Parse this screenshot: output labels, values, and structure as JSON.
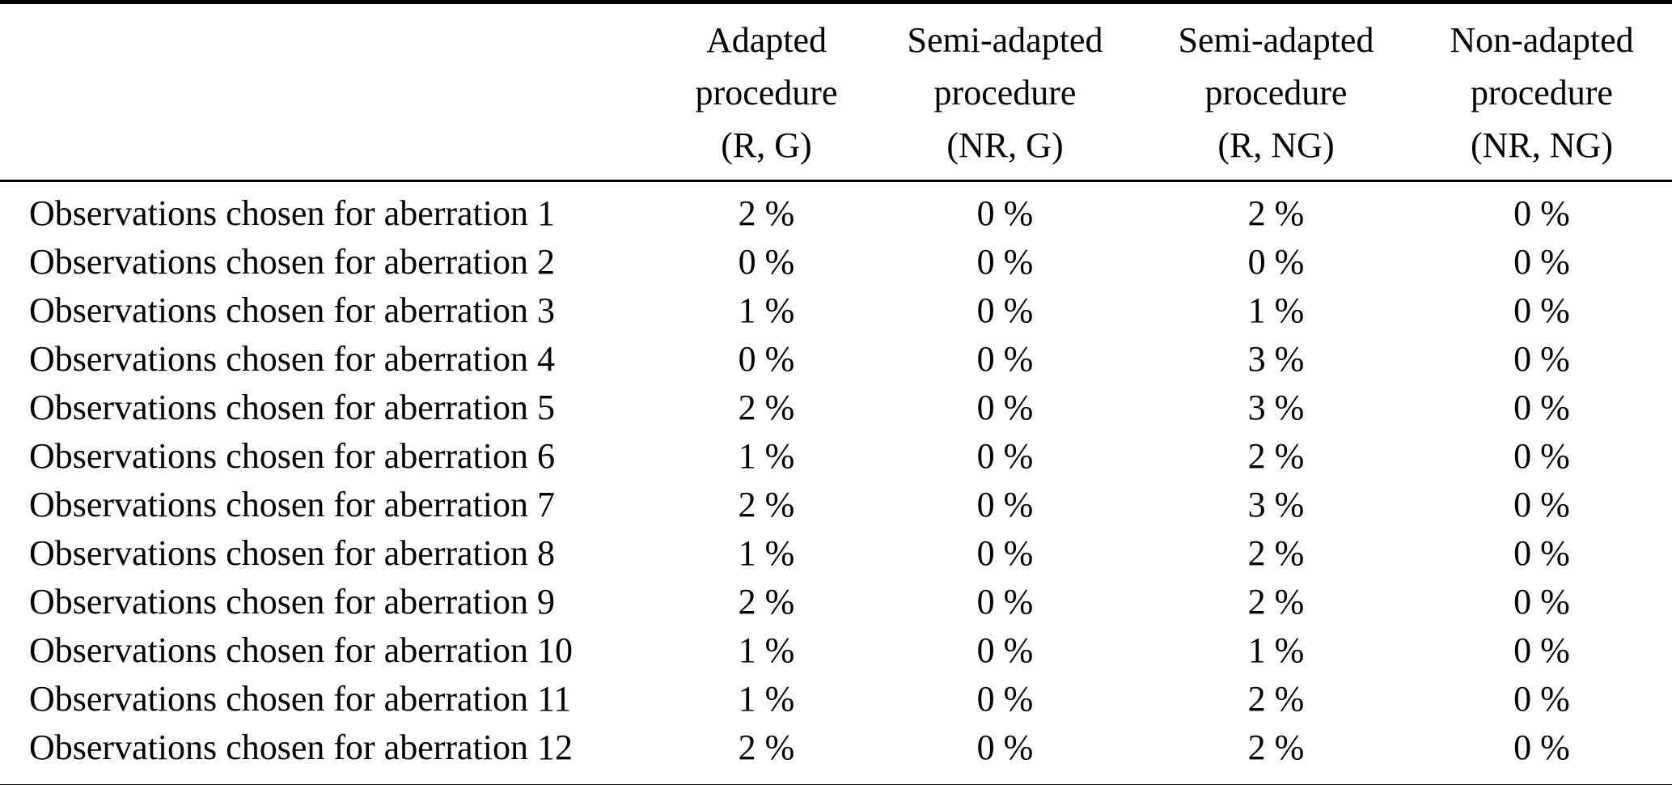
{
  "colors": {
    "background": "#ffffff",
    "text": "#000000",
    "rule": "#000000"
  },
  "table": {
    "corner_label": "",
    "columns": [
      {
        "label": "Adapted\nprocedure\n(R, G)"
      },
      {
        "label": "Semi-adapted\nprocedure\n(NR, G)"
      },
      {
        "label": "Semi-adapted\nprocedure\n(R, NG)"
      },
      {
        "label": "Non-adapted\nprocedure\n(NR, NG)"
      }
    ],
    "rows": [
      {
        "label": "Observations chosen for aberration 1",
        "values": [
          "2 %",
          "0 %",
          "2 %",
          "0 %"
        ]
      },
      {
        "label": "Observations chosen for aberration 2",
        "values": [
          "0 %",
          "0 %",
          "0 %",
          "0 %"
        ]
      },
      {
        "label": "Observations chosen for aberration 3",
        "values": [
          "1 %",
          "0 %",
          "1 %",
          "0 %"
        ]
      },
      {
        "label": "Observations chosen for aberration 4",
        "values": [
          "0 %",
          "0 %",
          "3 %",
          "0 %"
        ]
      },
      {
        "label": "Observations chosen for aberration 5",
        "values": [
          "2 %",
          "0 %",
          "3 %",
          "0 %"
        ]
      },
      {
        "label": "Observations chosen for aberration 6",
        "values": [
          "1 %",
          "0 %",
          "2 %",
          "0 %"
        ]
      },
      {
        "label": "Observations chosen for aberration 7",
        "values": [
          "2 %",
          "0 %",
          "3 %",
          "0 %"
        ]
      },
      {
        "label": "Observations chosen for aberration 8",
        "values": [
          "1 %",
          "0 %",
          "2 %",
          "0 %"
        ]
      },
      {
        "label": "Observations chosen for aberration 9",
        "values": [
          "2 %",
          "0 %",
          "2 %",
          "0 %"
        ]
      },
      {
        "label": "Observations chosen for aberration 10",
        "values": [
          "1 %",
          "0 %",
          "1 %",
          "0 %"
        ]
      },
      {
        "label": "Observations chosen for aberration 11",
        "values": [
          "1 %",
          "0 %",
          "2 %",
          "0 %"
        ]
      },
      {
        "label": "Observations chosen for aberration 12",
        "values": [
          "2 %",
          "0 %",
          "2 %",
          "0 %"
        ]
      }
    ]
  }
}
